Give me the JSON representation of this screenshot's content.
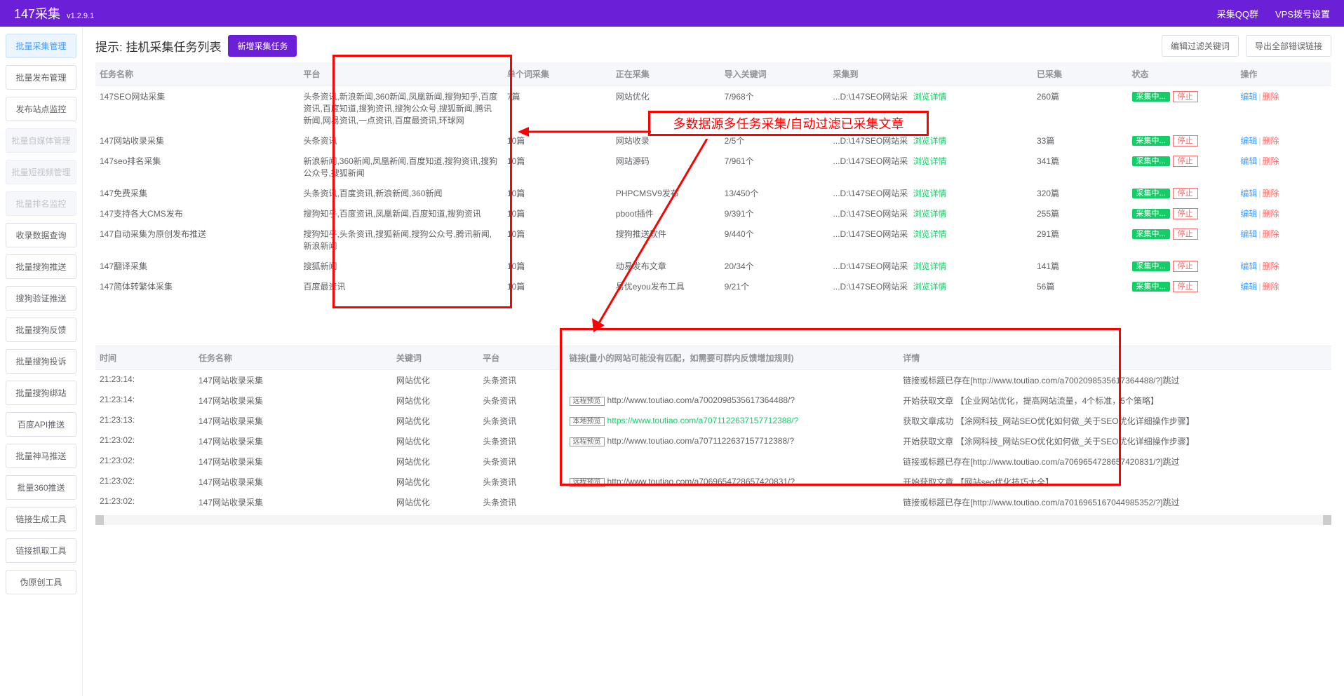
{
  "header": {
    "brand": "147采集",
    "version": "v1.2.9.1",
    "nav_qq": "采集QQ群",
    "nav_vps": "VPS拨号设置"
  },
  "sidebar": {
    "items": [
      {
        "label": "批量采集管理",
        "state": "active"
      },
      {
        "label": "批量发布管理",
        "state": "normal"
      },
      {
        "label": "发布站点监控",
        "state": "normal"
      },
      {
        "label": "批量自媒体管理",
        "state": "disabled"
      },
      {
        "label": "批量短视频管理",
        "state": "disabled"
      },
      {
        "label": "批量排名监控",
        "state": "disabled"
      },
      {
        "label": "收录数据查询",
        "state": "normal"
      },
      {
        "label": "批量搜狗推送",
        "state": "normal"
      },
      {
        "label": "搜狗验证推送",
        "state": "normal"
      },
      {
        "label": "批量搜狗反馈",
        "state": "normal"
      },
      {
        "label": "批量搜狗投诉",
        "state": "normal"
      },
      {
        "label": "批量搜狗绑站",
        "state": "normal"
      },
      {
        "label": "百度API推送",
        "state": "normal"
      },
      {
        "label": "批量神马推送",
        "state": "normal"
      },
      {
        "label": "批量360推送",
        "state": "normal"
      },
      {
        "label": "链接生成工具",
        "state": "normal"
      },
      {
        "label": "链接抓取工具",
        "state": "normal"
      },
      {
        "label": "伪原创工具",
        "state": "normal"
      }
    ]
  },
  "taskbar": {
    "hint": "提示: 挂机采集任务列表",
    "add_btn": "新增采集任务",
    "filter_btn": "编辑过滤关键词",
    "export_btn": "导出全部错误链接"
  },
  "tasks": {
    "headers": {
      "name": "任务名称",
      "platform": "平台",
      "single": "单个词采集",
      "current": "正在采集",
      "import": "导入关键词",
      "collect_to": "采集到",
      "done": "已采集",
      "status": "状态",
      "ops": "操作"
    },
    "browse_label": "浏览详情",
    "collecting_label": "采集中...",
    "stop_label": "停止",
    "edit_label": "编辑",
    "del_label": "删除",
    "rows": [
      {
        "name": "147SEO网站采集",
        "platform": "头条资讯,新浪新闻,360新闻,凤凰新闻,搜狗知乎,百度资讯,百度知道,搜狗资讯,搜狗公众号,搜狐新闻,腾讯新闻,网易资讯,一点资讯,百度最资讯,环球网",
        "single": "7篇",
        "current": "网站优化",
        "import": "7/968个",
        "collect_to": "...D:\\147SEO网站采",
        "done": "260篇"
      },
      {
        "name": "147网站收录采集",
        "platform": "头条资讯",
        "single": "10篇",
        "current": "网站收录",
        "import": "2/5个",
        "collect_to": "...D:\\147SEO网站采",
        "done": "33篇"
      },
      {
        "name": "147seo排名采集",
        "platform": "新浪新闻,360新闻,凤凰新闻,百度知道,搜狗资讯,搜狗公众号,搜狐新闻",
        "single": "10篇",
        "current": "网站源码",
        "import": "7/961个",
        "collect_to": "...D:\\147SEO网站采",
        "done": "341篇"
      },
      {
        "name": "147免费采集",
        "platform": "头条资讯,百度资讯,新浪新闻,360新闻",
        "single": "10篇",
        "current": "PHPCMSV9发布",
        "import": "13/450个",
        "collect_to": "...D:\\147SEO网站采",
        "done": "320篇"
      },
      {
        "name": "147支持各大CMS发布",
        "platform": "搜狗知乎,百度资讯,凤凰新闻,百度知道,搜狗资讯",
        "single": "10篇",
        "current": "pboot插件",
        "import": "9/391个",
        "collect_to": "...D:\\147SEO网站采",
        "done": "255篇"
      },
      {
        "name": "147自动采集为原创发布推送",
        "platform": "搜狗知乎,头条资讯,搜狐新闻,搜狗公众号,腾讯新闻,新浪新闻",
        "single": "10篇",
        "current": "搜狗推送软件",
        "import": "9/440个",
        "collect_to": "...D:\\147SEO网站采",
        "done": "291篇"
      },
      {
        "name": "147翻译采集",
        "platform": "搜狐新闻",
        "single": "10篇",
        "current": "动易发布文章",
        "import": "20/34个",
        "collect_to": "...D:\\147SEO网站采",
        "done": "141篇"
      },
      {
        "name": "147简体转繁体采集",
        "platform": "百度最资讯",
        "single": "10篇",
        "current": "易优eyou发布工具",
        "import": "9/21个",
        "collect_to": "...D:\\147SEO网站采",
        "done": "56篇"
      }
    ]
  },
  "logs": {
    "headers": {
      "time": "时间",
      "task": "任务名称",
      "keyword": "关键词",
      "platform": "平台",
      "link": "链接(量小的网站可能没有匹配，如需要可群内反馈增加规则)",
      "detail": "详情"
    },
    "tag_remote": "远程预览",
    "tag_local": "本地预览",
    "rows": [
      {
        "time": "21:23:14:",
        "task": "147网站收录采集",
        "keyword": "网站优化",
        "platform": "头条资讯",
        "link_tag": "",
        "link": "",
        "link_cls": "",
        "detail": "链接或标题已存在[http://www.toutiao.com/a7002098535617364488/?]跳过"
      },
      {
        "time": "21:23:14:",
        "task": "147网站收录采集",
        "keyword": "网站优化",
        "platform": "头条资讯",
        "link_tag": "远程预览",
        "link": "http://www.toutiao.com/a7002098535617364488/?",
        "link_cls": "",
        "detail": "开始获取文章 【企业网站优化，提高网站流量，4个标准，5个策略】"
      },
      {
        "time": "21:23:13:",
        "task": "147网站收录采集",
        "keyword": "网站优化",
        "platform": "头条资讯",
        "link_tag": "本地预览",
        "link": "https://www.toutiao.com/a7071122637157712388/?",
        "link_cls": "green",
        "detail": "获取文章成功 【涂网科技_网站SEO优化如何做_关于SEO优化详细操作步骤】"
      },
      {
        "time": "21:23:02:",
        "task": "147网站收录采集",
        "keyword": "网站优化",
        "platform": "头条资讯",
        "link_tag": "远程预览",
        "link": "http://www.toutiao.com/a7071122637157712388/?",
        "link_cls": "",
        "detail": "开始获取文章 【涂网科技_网站SEO优化如何做_关于SEO优化详细操作步骤】"
      },
      {
        "time": "21:23:02:",
        "task": "147网站收录采集",
        "keyword": "网站优化",
        "platform": "头条资讯",
        "link_tag": "",
        "link": "",
        "link_cls": "",
        "detail": "链接或标题已存在[http://www.toutiao.com/a7069654728657420831/?]跳过"
      },
      {
        "time": "21:23:02:",
        "task": "147网站收录采集",
        "keyword": "网站优化",
        "platform": "头条资讯",
        "link_tag": "远程预览",
        "link": "http://www.toutiao.com/a7069654728657420831/?",
        "link_cls": "",
        "detail": "开始获取文章 【网站seo优化技巧大全】"
      },
      {
        "time": "21:23:02:",
        "task": "147网站收录采集",
        "keyword": "网站优化",
        "platform": "头条资讯",
        "link_tag": "",
        "link": "",
        "link_cls": "",
        "detail": "链接或标题已存在[http://www.toutiao.com/a7016965167044985352/?]跳过"
      }
    ]
  },
  "anno": {
    "callout": "多数据源多任务采集/自动过滤已采集文章"
  },
  "colors": {
    "primary": "#6b1fd6",
    "green": "#13ce66",
    "red": "#f56c6c",
    "blue": "#409eff",
    "text": "#606266"
  }
}
